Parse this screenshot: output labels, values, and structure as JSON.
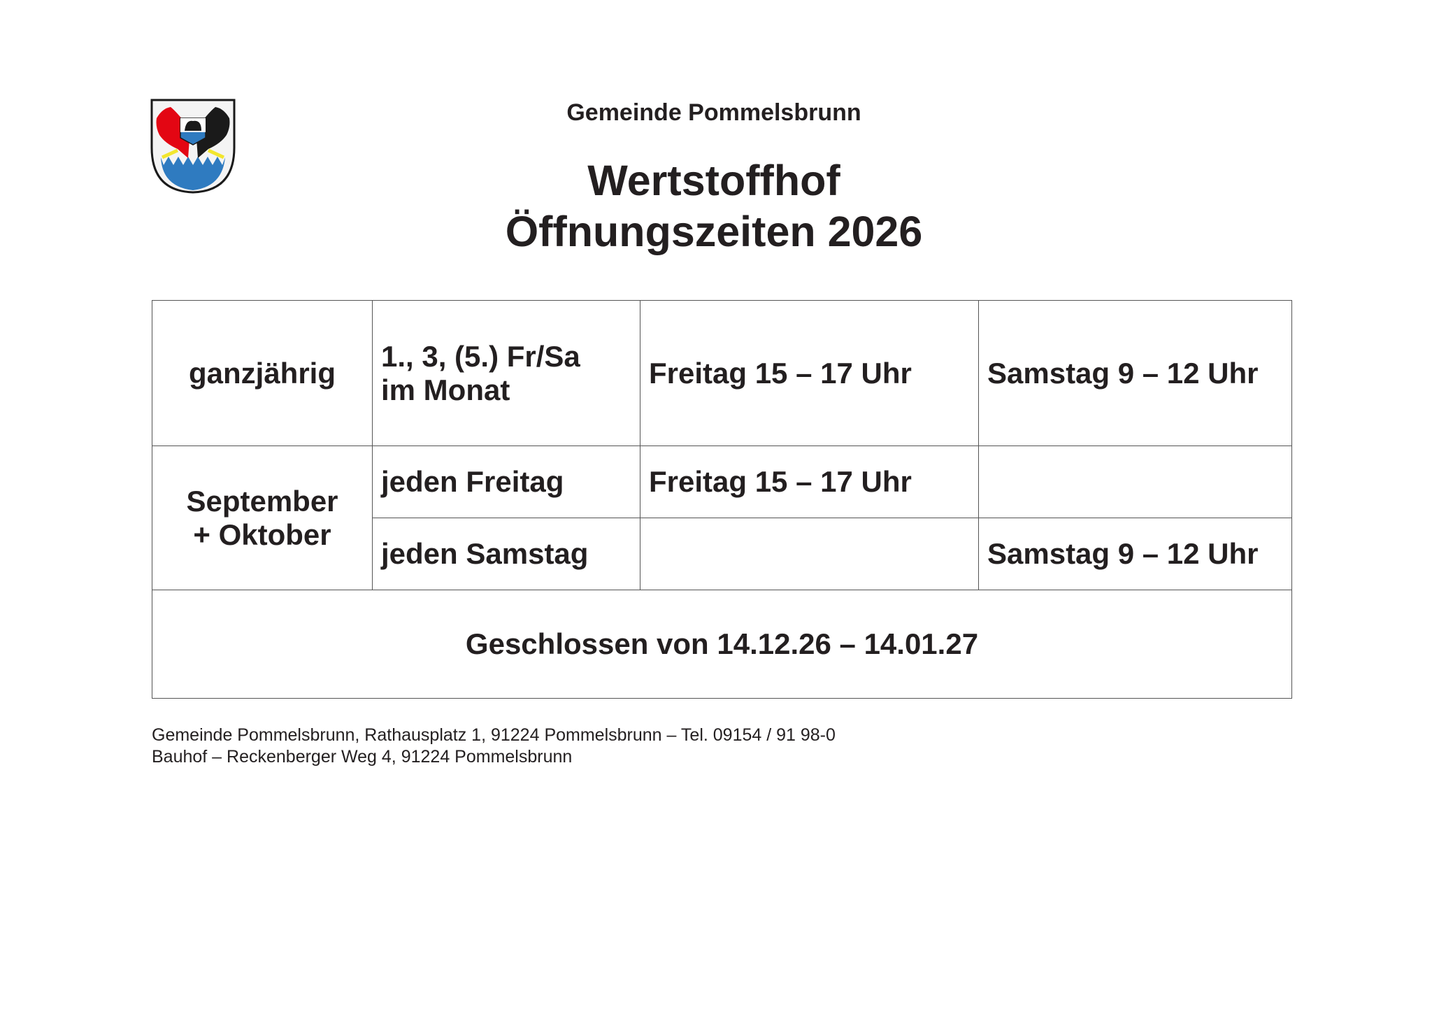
{
  "header": {
    "organization": "Gemeinde Pommelsbrunn",
    "title_line1": "Wertstoffhof",
    "title_line2": "Öffnungszeiten 2026"
  },
  "logo": {
    "name": "coat-of-arms-pommelsbrunn",
    "colors": {
      "red": "#e30613",
      "blue": "#2f7bc0",
      "yellow": "#f2e62e",
      "black": "#1a1a1a"
    }
  },
  "schedule": {
    "rows": [
      {
        "period": "ganzjährig",
        "rule_line1": "1., 3, (5.) Fr/Sa",
        "rule_line2": "im Monat",
        "friday": "Freitag 15 – 17 Uhr",
        "saturday": "Samstag 9 – 12 Uhr"
      },
      {
        "period_line1": "September",
        "period_line2": "+ Oktober",
        "rule": "jeden Freitag",
        "friday": "Freitag 15 – 17 Uhr",
        "saturday": ""
      },
      {
        "rule": "jeden Samstag",
        "friday": "",
        "saturday": "Samstag 9 – 12 Uhr"
      }
    ],
    "closed": "Geschlossen von 14.12.26 – 14.01.27"
  },
  "footer": {
    "line1": "Gemeinde Pommelsbrunn, Rathausplatz 1, 91224 Pommelsbrunn – Tel. 09154 / 91 98-0",
    "line2": "Bauhof – Reckenberger Weg 4, 91224 Pommelsbrunn"
  }
}
